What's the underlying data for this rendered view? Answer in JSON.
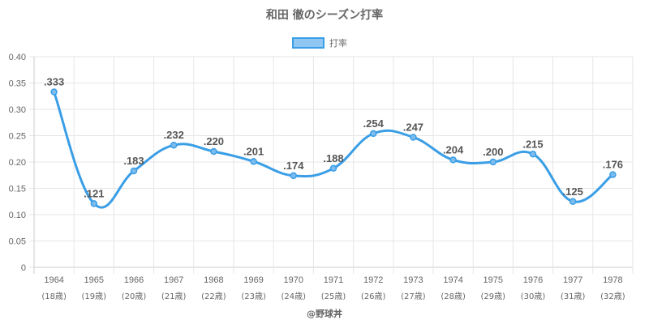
{
  "chart_data": {
    "type": "line",
    "title": "和田 徹のシーズン打率",
    "legend_position": "top",
    "grid": true,
    "categories": [
      "1964",
      "1965",
      "1966",
      "1967",
      "1968",
      "1969",
      "1970",
      "1971",
      "1972",
      "1973",
      "1974",
      "1975",
      "1976",
      "1977",
      "1978"
    ],
    "category_sublabels": [
      "(18歳)",
      "(19歳)",
      "(20歳)",
      "(21歳)",
      "(22歳)",
      "(23歳)",
      "(24歳)",
      "(25歳)",
      "(26歳)",
      "(27歳)",
      "(28歳)",
      "(29歳)",
      "(30歳)",
      "(31歳)",
      "(32歳)"
    ],
    "series": [
      {
        "name": "打率",
        "color": "#3a9ee6",
        "values": [
          0.333,
          0.121,
          0.183,
          0.232,
          0.22,
          0.201,
          0.174,
          0.188,
          0.254,
          0.247,
          0.204,
          0.2,
          0.215,
          0.125,
          0.176
        ],
        "data_labels": [
          ".333",
          ".121",
          ".183",
          ".232",
          ".220",
          ".201",
          ".174",
          ".188",
          ".254",
          ".247",
          ".204",
          ".200",
          ".215",
          ".125",
          ".176"
        ]
      }
    ],
    "ylim": [
      0,
      0.4
    ],
    "yticks": [
      "0",
      "0.05",
      "0.10",
      "0.15",
      "0.20",
      "0.25",
      "0.30",
      "0.35",
      "0.40"
    ],
    "ytick_values": [
      0,
      0.05,
      0.1,
      0.15,
      0.2,
      0.25,
      0.3,
      0.35,
      0.4
    ]
  },
  "credit": "@野球丼"
}
